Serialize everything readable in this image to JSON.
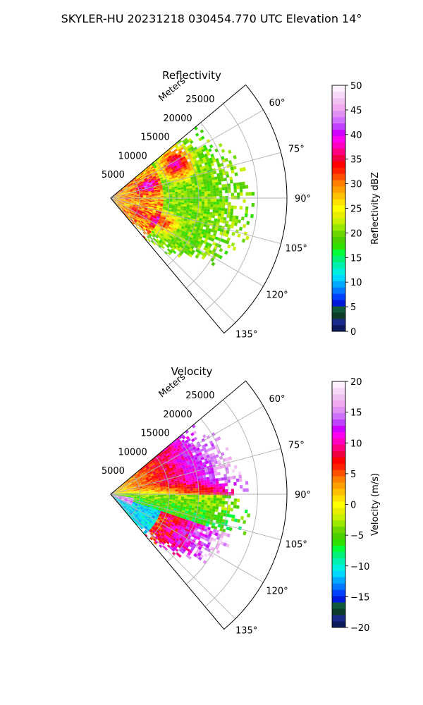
{
  "figure_title": "SKYLER-HU  20231218  030454.770 UTC Elevation 14°",
  "chart_data": [
    {
      "type": "heatmap",
      "projection": "polar-sector",
      "title": "Reflectivity",
      "radial_axis_label": "Meters",
      "radial_ticks": [
        "5000",
        "10000",
        "15000",
        "20000",
        "25000"
      ],
      "radial_tick_values": [
        5000,
        10000,
        15000,
        20000,
        25000
      ],
      "radial_range": [
        0,
        30000
      ],
      "azimuth_range": [
        50,
        140
      ],
      "azimuth_tick_values": [
        60,
        75,
        90,
        105,
        120,
        135
      ],
      "azimuth_tick_labels": [
        "60°",
        "75°",
        "90°",
        "105°",
        "120°",
        "135°"
      ],
      "colorbar": {
        "label": "Reflectivity dBZ",
        "range": [
          0,
          50
        ],
        "tick_values": [
          0,
          5,
          10,
          15,
          20,
          25,
          30,
          35,
          40,
          45,
          50
        ],
        "tick_labels": [
          "0",
          "5",
          "10",
          "15",
          "20",
          "25",
          "30",
          "35",
          "40",
          "45",
          "50"
        ],
        "colors": [
          "#0a1a5a",
          "#1a2a8a",
          "#0b3d2a",
          "#0f5a3a",
          "#0018d8",
          "#0040ff",
          "#0078ff",
          "#00a8ff",
          "#00d8ff",
          "#00f0e0",
          "#00f0b0",
          "#00f078",
          "#00ff3a",
          "#30e000",
          "#4ad000",
          "#6ad800",
          "#98e800",
          "#c8f000",
          "#e8f000",
          "#ffff00",
          "#ffe000",
          "#ffc000",
          "#ffa000",
          "#ff8000",
          "#ff5000",
          "#ff2000",
          "#ff0000",
          "#f00040",
          "#ff0080",
          "#ff00c0",
          "#ff00f0",
          "#d000ff",
          "#c040ff",
          "#d070ff",
          "#e090f0",
          "#f0a8f0",
          "#f0c0f0",
          "#f8d8f8",
          "#fff0ff"
        ]
      }
    },
    {
      "type": "heatmap",
      "projection": "polar-sector",
      "title": "Velocity",
      "radial_axis_label": "Meters",
      "radial_ticks": [
        "5000",
        "10000",
        "15000",
        "20000",
        "25000"
      ],
      "radial_tick_values": [
        5000,
        10000,
        15000,
        20000,
        25000
      ],
      "radial_range": [
        0,
        30000
      ],
      "azimuth_range": [
        50,
        140
      ],
      "azimuth_tick_values": [
        60,
        75,
        90,
        105,
        120,
        135
      ],
      "azimuth_tick_labels": [
        "60°",
        "75°",
        "90°",
        "105°",
        "120°",
        "135°"
      ],
      "colorbar": {
        "label": "Velocity (m/s)",
        "range": [
          -20,
          20
        ],
        "tick_values": [
          -20,
          -15,
          -10,
          -5,
          0,
          5,
          10,
          15,
          20
        ],
        "tick_labels": [
          "−20",
          "−15",
          "−10",
          "−5",
          "0",
          "5",
          "10",
          "15",
          "20"
        ],
        "colors": [
          "#0a1a5a",
          "#1a2a8a",
          "#0b3d2a",
          "#0f5a3a",
          "#0018d8",
          "#0040ff",
          "#0078ff",
          "#00a8ff",
          "#00d8ff",
          "#00f0e0",
          "#00f0b0",
          "#00f078",
          "#00ff3a",
          "#30e000",
          "#4ad000",
          "#6ad800",
          "#98e800",
          "#c8f000",
          "#e8f000",
          "#ffff00",
          "#ffe000",
          "#ffc000",
          "#ffa000",
          "#ff8000",
          "#ff5000",
          "#ff2000",
          "#ff0000",
          "#f00040",
          "#ff0080",
          "#ff00c0",
          "#ff00f0",
          "#d000ff",
          "#c040ff",
          "#d070ff",
          "#e090f0",
          "#f0a8f0",
          "#f0c0f0",
          "#f8d8f8",
          "#fff0ff"
        ]
      }
    }
  ]
}
